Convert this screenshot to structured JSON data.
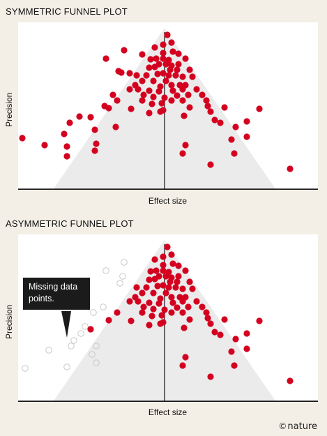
{
  "colors": {
    "point": "#d4001f",
    "missing": "#c8c8c8",
    "funnel": "#ebebeb",
    "axis": "#111111",
    "background": "#f3efe6",
    "plot": "#ffffff"
  },
  "brand": {
    "symbol": "©",
    "name": "nature"
  },
  "callout": {
    "text": "Missing data points."
  },
  "chart_data": [
    {
      "type": "scatter",
      "title": "SYMMETRIC FUNNEL PLOT",
      "xlabel": "Effect size",
      "ylabel": "Precision",
      "xlim": [
        -210,
        220
      ],
      "ylim": [
        0,
        240
      ],
      "center": 0,
      "funnel": {
        "apex": [
          0,
          232
        ],
        "base": [
          -160,
          160
        ]
      },
      "points": [
        [
          4,
          222
        ],
        [
          -2,
          208
        ],
        [
          10,
          211
        ],
        [
          -14,
          204
        ],
        [
          -2,
          196
        ],
        [
          12,
          198
        ],
        [
          20,
          195
        ],
        [
          -58,
          200
        ],
        [
          -84,
          188
        ],
        [
          -12,
          188
        ],
        [
          -2,
          188
        ],
        [
          6,
          186
        ],
        [
          -32,
          194
        ],
        [
          -20,
          187
        ],
        [
          30,
          188
        ],
        [
          -8,
          180
        ],
        [
          2,
          180
        ],
        [
          10,
          178
        ],
        [
          20,
          180
        ],
        [
          -66,
          170
        ],
        [
          -62,
          168
        ],
        [
          -22,
          175
        ],
        [
          -14,
          176
        ],
        [
          8,
          172
        ],
        [
          18,
          172
        ],
        [
          36,
          172
        ],
        [
          -50,
          167
        ],
        [
          -40,
          164
        ],
        [
          -26,
          164
        ],
        [
          -10,
          166
        ],
        [
          -2,
          167
        ],
        [
          6,
          164
        ],
        [
          16,
          164
        ],
        [
          26,
          162
        ],
        [
          40,
          162
        ],
        [
          -32,
          156
        ],
        [
          -16,
          156
        ],
        [
          2,
          156
        ],
        [
          -42,
          150
        ],
        [
          -6,
          148
        ],
        [
          10,
          150
        ],
        [
          22,
          150
        ],
        [
          30,
          150
        ],
        [
          -50,
          144
        ],
        [
          -38,
          144
        ],
        [
          -22,
          142
        ],
        [
          -8,
          141
        ],
        [
          12,
          142
        ],
        [
          26,
          144
        ],
        [
          46,
          144
        ],
        [
          -74,
          136
        ],
        [
          -30,
          136
        ],
        [
          -16,
          133
        ],
        [
          0,
          132
        ],
        [
          18,
          135
        ],
        [
          34,
          136
        ],
        [
          54,
          136
        ],
        [
          -68,
          128
        ],
        [
          -86,
          120
        ],
        [
          -80,
          117
        ],
        [
          -48,
          116
        ],
        [
          -32,
          128
        ],
        [
          -18,
          123
        ],
        [
          -4,
          124
        ],
        [
          10,
          128
        ],
        [
          26,
          128
        ],
        [
          60,
          128
        ],
        [
          -2,
          114
        ],
        [
          36,
          118
        ],
        [
          62,
          120
        ],
        [
          -22,
          110
        ],
        [
          -6,
          112
        ],
        [
          66,
          112
        ],
        [
          86,
          118
        ],
        [
          136,
          116
        ],
        [
          -122,
          105
        ],
        [
          -106,
          104
        ],
        [
          -136,
          96
        ],
        [
          28,
          106
        ],
        [
          72,
          100
        ],
        [
          80,
          96
        ],
        [
          102,
          90
        ],
        [
          118,
          98
        ],
        [
          -70,
          90
        ],
        [
          -100,
          86
        ],
        [
          -144,
          80
        ],
        [
          -204,
          74
        ],
        [
          -98,
          66
        ],
        [
          -140,
          62
        ],
        [
          -172,
          64
        ],
        [
          30,
          64
        ],
        [
          96,
          72
        ],
        [
          118,
          76
        ],
        [
          -100,
          56
        ],
        [
          26,
          52
        ],
        [
          100,
          52
        ],
        [
          -140,
          48
        ],
        [
          66,
          36
        ],
        [
          180,
          30
        ]
      ],
      "missing_points": []
    },
    {
      "type": "scatter",
      "title": "ASYMMETRIC FUNNEL PLOT",
      "xlabel": "Effect size",
      "ylabel": "Precision",
      "xlim": [
        -210,
        220
      ],
      "ylim": [
        0,
        240
      ],
      "center": 0,
      "funnel": {
        "apex": [
          0,
          232
        ],
        "base": [
          -160,
          160
        ]
      },
      "points": [
        [
          4,
          222
        ],
        [
          -2,
          208
        ],
        [
          10,
          211
        ],
        [
          -14,
          204
        ],
        [
          -2,
          196
        ],
        [
          12,
          198
        ],
        [
          20,
          195
        ],
        [
          -12,
          188
        ],
        [
          -2,
          188
        ],
        [
          6,
          186
        ],
        [
          -20,
          187
        ],
        [
          30,
          188
        ],
        [
          -8,
          180
        ],
        [
          2,
          180
        ],
        [
          10,
          178
        ],
        [
          20,
          180
        ],
        [
          -22,
          175
        ],
        [
          -14,
          176
        ],
        [
          8,
          172
        ],
        [
          18,
          172
        ],
        [
          36,
          172
        ],
        [
          -40,
          164
        ],
        [
          -26,
          164
        ],
        [
          -10,
          166
        ],
        [
          -2,
          167
        ],
        [
          6,
          164
        ],
        [
          16,
          164
        ],
        [
          26,
          162
        ],
        [
          40,
          162
        ],
        [
          -32,
          156
        ],
        [
          -16,
          156
        ],
        [
          2,
          156
        ],
        [
          -42,
          150
        ],
        [
          -6,
          148
        ],
        [
          10,
          150
        ],
        [
          22,
          150
        ],
        [
          30,
          150
        ],
        [
          -50,
          144
        ],
        [
          -38,
          144
        ],
        [
          -22,
          142
        ],
        [
          -8,
          141
        ],
        [
          12,
          142
        ],
        [
          26,
          144
        ],
        [
          46,
          144
        ],
        [
          -30,
          136
        ],
        [
          -16,
          133
        ],
        [
          0,
          132
        ],
        [
          18,
          135
        ],
        [
          34,
          136
        ],
        [
          54,
          136
        ],
        [
          -68,
          128
        ],
        [
          -80,
          117
        ],
        [
          -48,
          116
        ],
        [
          -32,
          128
        ],
        [
          -18,
          123
        ],
        [
          -4,
          124
        ],
        [
          10,
          128
        ],
        [
          26,
          128
        ],
        [
          60,
          128
        ],
        [
          -2,
          114
        ],
        [
          36,
          118
        ],
        [
          62,
          120
        ],
        [
          -22,
          110
        ],
        [
          -6,
          112
        ],
        [
          66,
          112
        ],
        [
          86,
          118
        ],
        [
          136,
          116
        ],
        [
          -106,
          104
        ],
        [
          28,
          106
        ],
        [
          72,
          100
        ],
        [
          80,
          96
        ],
        [
          102,
          90
        ],
        [
          118,
          98
        ],
        [
          30,
          64
        ],
        [
          96,
          72
        ],
        [
          118,
          76
        ],
        [
          26,
          52
        ],
        [
          100,
          52
        ],
        [
          66,
          36
        ],
        [
          180,
          30
        ]
      ],
      "missing_points": [
        [
          -84,
          188
        ],
        [
          -58,
          200
        ],
        [
          -60,
          180
        ],
        [
          -64,
          170
        ],
        [
          -88,
          136
        ],
        [
          -102,
          128
        ],
        [
          -114,
          108
        ],
        [
          -120,
          98
        ],
        [
          -130,
          88
        ],
        [
          -134,
          80
        ],
        [
          -98,
          80
        ],
        [
          -166,
          74
        ],
        [
          -104,
          68
        ],
        [
          -98,
          56
        ],
        [
          -140,
          50
        ],
        [
          -200,
          48
        ]
      ]
    }
  ]
}
